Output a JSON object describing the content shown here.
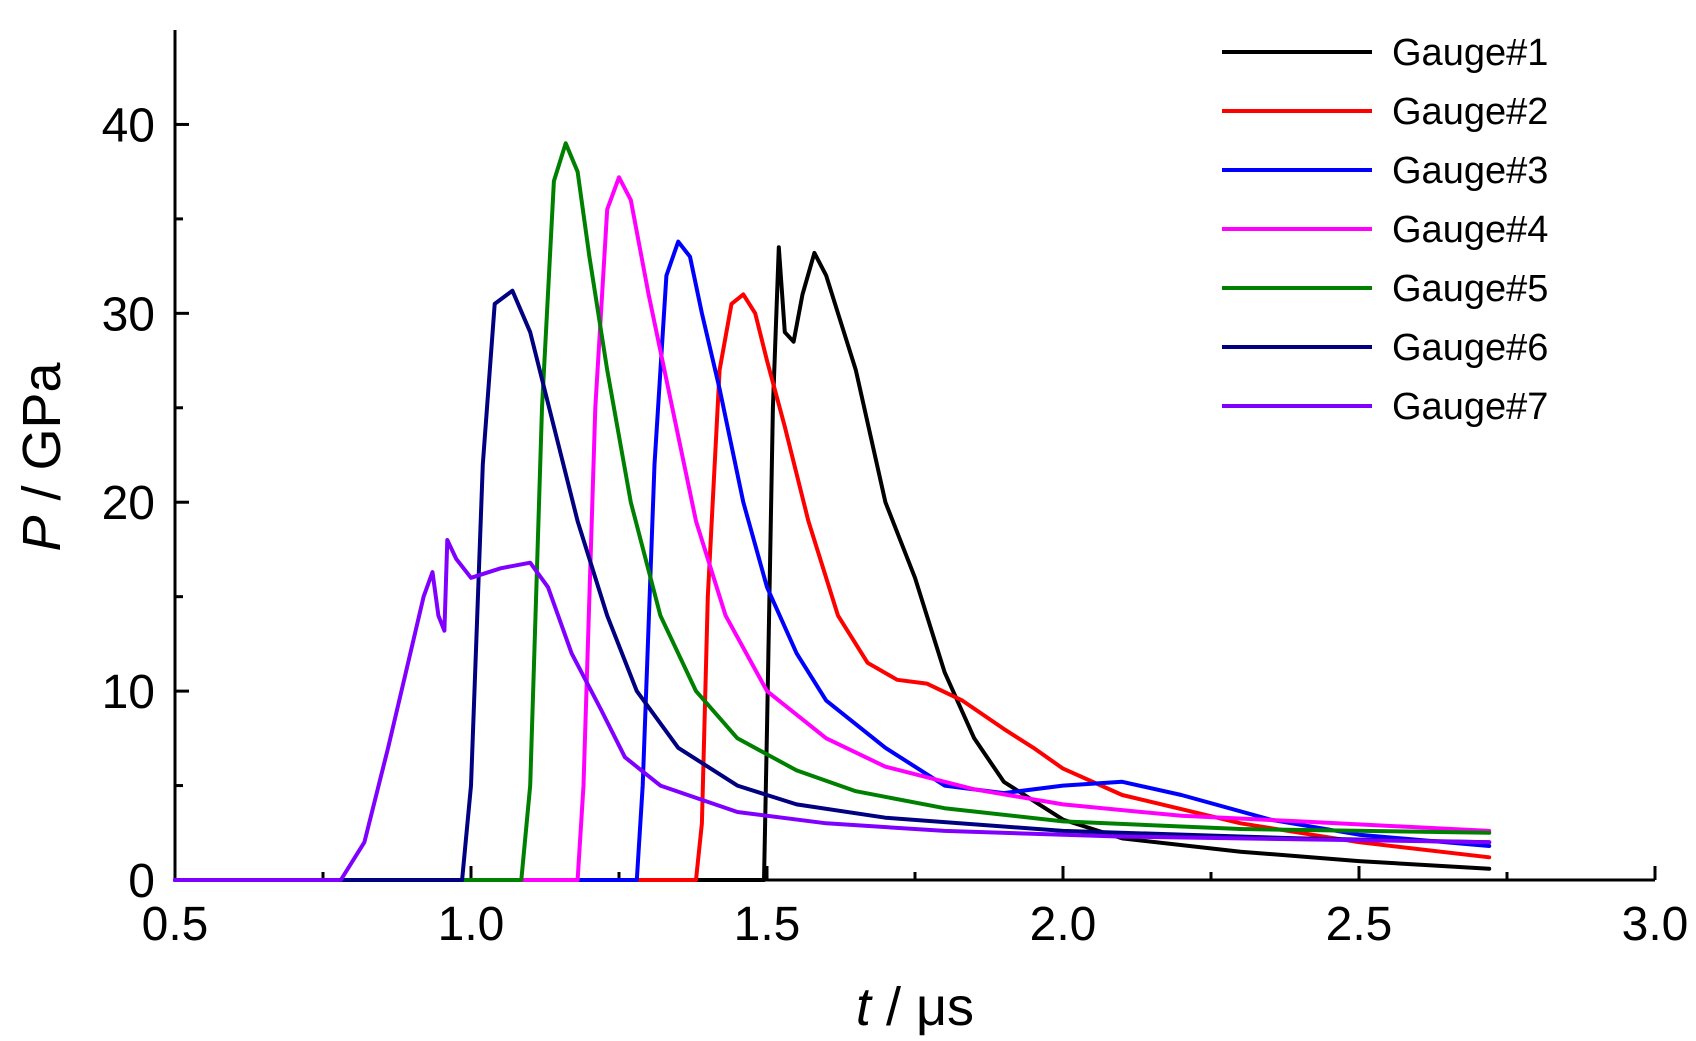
{
  "chart_data": {
    "type": "line",
    "xlabel_var": "t",
    "xlabel_unit": " / μs",
    "ylabel_var": "P",
    "ylabel_unit": " / GPa",
    "xlim": [
      0.5,
      3.0
    ],
    "ylim": [
      0,
      45
    ],
    "x_ticks": [
      0.5,
      1.0,
      1.5,
      2.0,
      2.5,
      3.0
    ],
    "x_tick_labels": [
      "0.5",
      "1.0",
      "1.5",
      "2.0",
      "2.5",
      "3.0"
    ],
    "y_ticks": [
      0,
      10,
      20,
      30,
      40
    ],
    "y_tick_labels": [
      "0",
      "10",
      "20",
      "30",
      "40"
    ],
    "grid": false,
    "legend_position": "top-right",
    "series": [
      {
        "name": "Gauge#1",
        "color": "#000000",
        "points": [
          [
            0.5,
            0
          ],
          [
            1.495,
            0
          ],
          [
            1.5,
            8
          ],
          [
            1.51,
            25
          ],
          [
            1.52,
            33.5
          ],
          [
            1.53,
            29
          ],
          [
            1.545,
            28.5
          ],
          [
            1.56,
            31
          ],
          [
            1.58,
            33.2
          ],
          [
            1.6,
            32
          ],
          [
            1.62,
            30
          ],
          [
            1.65,
            27
          ],
          [
            1.7,
            20
          ],
          [
            1.75,
            16
          ],
          [
            1.8,
            11
          ],
          [
            1.85,
            7.5
          ],
          [
            1.9,
            5.2
          ],
          [
            2.0,
            3.2
          ],
          [
            2.1,
            2.2
          ],
          [
            2.3,
            1.5
          ],
          [
            2.5,
            1.0
          ],
          [
            2.72,
            0.6
          ]
        ]
      },
      {
        "name": "Gauge#2",
        "color": "#ff0000",
        "points": [
          [
            0.5,
            0
          ],
          [
            1.38,
            0
          ],
          [
            1.39,
            3
          ],
          [
            1.4,
            15
          ],
          [
            1.42,
            27
          ],
          [
            1.44,
            30.5
          ],
          [
            1.46,
            31
          ],
          [
            1.48,
            30
          ],
          [
            1.5,
            27.5
          ],
          [
            1.53,
            24
          ],
          [
            1.57,
            19
          ],
          [
            1.62,
            14
          ],
          [
            1.67,
            11.5
          ],
          [
            1.72,
            10.6
          ],
          [
            1.77,
            10.4
          ],
          [
            1.83,
            9.5
          ],
          [
            1.9,
            8
          ],
          [
            1.95,
            7
          ],
          [
            2.0,
            5.9
          ],
          [
            2.1,
            4.5
          ],
          [
            2.3,
            3.0
          ],
          [
            2.5,
            2.0
          ],
          [
            2.72,
            1.2
          ]
        ]
      },
      {
        "name": "Gauge#3",
        "color": "#0000ff",
        "points": [
          [
            0.5,
            0
          ],
          [
            1.28,
            0
          ],
          [
            1.29,
            5
          ],
          [
            1.31,
            22
          ],
          [
            1.33,
            32
          ],
          [
            1.35,
            33.8
          ],
          [
            1.37,
            33
          ],
          [
            1.39,
            30
          ],
          [
            1.42,
            26
          ],
          [
            1.46,
            20
          ],
          [
            1.5,
            15.5
          ],
          [
            1.55,
            12
          ],
          [
            1.6,
            9.5
          ],
          [
            1.7,
            7
          ],
          [
            1.8,
            5
          ],
          [
            1.9,
            4.6
          ],
          [
            2.0,
            5.0
          ],
          [
            2.1,
            5.2
          ],
          [
            2.2,
            4.5
          ],
          [
            2.35,
            3.2
          ],
          [
            2.5,
            2.4
          ],
          [
            2.72,
            1.8
          ]
        ]
      },
      {
        "name": "Gauge#4",
        "color": "#ff00ff",
        "points": [
          [
            0.5,
            0
          ],
          [
            1.18,
            0
          ],
          [
            1.19,
            5
          ],
          [
            1.21,
            25
          ],
          [
            1.23,
            35.5
          ],
          [
            1.25,
            37.2
          ],
          [
            1.27,
            36
          ],
          [
            1.3,
            31
          ],
          [
            1.34,
            25
          ],
          [
            1.38,
            19
          ],
          [
            1.43,
            14
          ],
          [
            1.5,
            10
          ],
          [
            1.6,
            7.5
          ],
          [
            1.7,
            6
          ],
          [
            1.85,
            4.8
          ],
          [
            2.0,
            4.0
          ],
          [
            2.2,
            3.4
          ],
          [
            2.4,
            3.1
          ],
          [
            2.72,
            2.6
          ]
        ]
      },
      {
        "name": "Gauge#5",
        "color": "#008000",
        "points": [
          [
            0.5,
            0
          ],
          [
            1.085,
            0
          ],
          [
            1.1,
            5
          ],
          [
            1.12,
            25
          ],
          [
            1.14,
            37
          ],
          [
            1.16,
            39
          ],
          [
            1.18,
            37.5
          ],
          [
            1.2,
            33
          ],
          [
            1.23,
            27
          ],
          [
            1.27,
            20
          ],
          [
            1.32,
            14
          ],
          [
            1.38,
            10
          ],
          [
            1.45,
            7.5
          ],
          [
            1.55,
            5.8
          ],
          [
            1.65,
            4.7
          ],
          [
            1.8,
            3.8
          ],
          [
            2.0,
            3.1
          ],
          [
            2.3,
            2.7
          ],
          [
            2.72,
            2.5
          ]
        ]
      },
      {
        "name": "Gauge#6",
        "color": "#000080",
        "points": [
          [
            0.5,
            0
          ],
          [
            0.985,
            0
          ],
          [
            1.0,
            5
          ],
          [
            1.02,
            22
          ],
          [
            1.04,
            30.5
          ],
          [
            1.07,
            31.2
          ],
          [
            1.1,
            29
          ],
          [
            1.14,
            24
          ],
          [
            1.18,
            19
          ],
          [
            1.23,
            14
          ],
          [
            1.28,
            10
          ],
          [
            1.35,
            7
          ],
          [
            1.45,
            5
          ],
          [
            1.55,
            4.0
          ],
          [
            1.7,
            3.3
          ],
          [
            2.0,
            2.6
          ],
          [
            2.4,
            2.2
          ],
          [
            2.72,
            2.0
          ]
        ]
      },
      {
        "name": "Gauge#7",
        "color": "#8000ff",
        "points": [
          [
            0.5,
            0
          ],
          [
            0.78,
            0
          ],
          [
            0.82,
            2
          ],
          [
            0.86,
            7
          ],
          [
            0.89,
            11
          ],
          [
            0.92,
            15
          ],
          [
            0.935,
            16.3
          ],
          [
            0.945,
            14
          ],
          [
            0.955,
            13.2
          ],
          [
            0.96,
            18
          ],
          [
            0.975,
            17
          ],
          [
            1.0,
            16
          ],
          [
            1.05,
            16.5
          ],
          [
            1.1,
            16.8
          ],
          [
            1.13,
            15.5
          ],
          [
            1.17,
            12
          ],
          [
            1.22,
            9
          ],
          [
            1.26,
            6.5
          ],
          [
            1.32,
            5
          ],
          [
            1.45,
            3.6
          ],
          [
            1.6,
            3.0
          ],
          [
            1.8,
            2.6
          ],
          [
            2.1,
            2.3
          ],
          [
            2.72,
            2.0
          ]
        ]
      }
    ]
  }
}
